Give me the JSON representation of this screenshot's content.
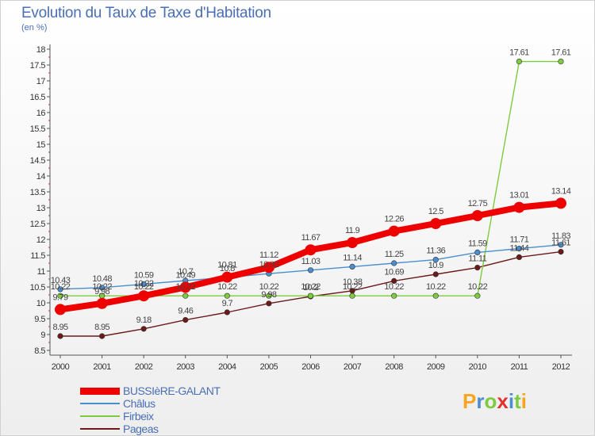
{
  "chart_data": {
    "type": "line",
    "title": "Evolution du Taux de Taxe d'Habitation",
    "subtitle": "(en %)",
    "x": [
      "2000",
      "2001",
      "2002",
      "2003",
      "2004",
      "2005",
      "2006",
      "2007",
      "2008",
      "2009",
      "2010",
      "2011",
      "2012"
    ],
    "ylim": [
      8.5,
      18
    ],
    "yticks": [
      "8.5",
      "9",
      "9.5",
      "10",
      "10.5",
      "11",
      "11.5",
      "12",
      "12.5",
      "13",
      "13.5",
      "14",
      "14.5",
      "15",
      "15.5",
      "16",
      "16.5",
      "17",
      "17.5",
      "18"
    ],
    "series": [
      {
        "name": "Pageas",
        "color": "#6b1a1a",
        "values": [
          8.95,
          8.95,
          9.18,
          9.46,
          9.7,
          9.98,
          10.2,
          10.38,
          10.69,
          10.9,
          11.11,
          11.44,
          11.61
        ],
        "labels": [
          "8.95",
          "8.95",
          "9.18",
          "9.46",
          "9.7",
          "9.98",
          "10.2",
          "10.38",
          "10.69",
          "10.9",
          "11.11",
          "11.44",
          "11.61"
        ]
      },
      {
        "name": "Firbeix",
        "color": "#7ecb3f",
        "values": [
          10.22,
          10.22,
          10.22,
          10.22,
          10.22,
          10.22,
          10.22,
          10.22,
          10.22,
          10.22,
          10.22,
          17.61,
          17.61
        ],
        "labels": [
          "10.22",
          "10.22",
          "10.22",
          "10.22",
          "10.22",
          "10.22",
          "10.22",
          "10.22",
          "10.22",
          "10.22",
          "10.22",
          "17.61",
          "17.61"
        ]
      },
      {
        "name": "Châlus",
        "color": "#4a8ed0",
        "values": [
          10.43,
          10.48,
          10.59,
          10.7,
          10.8,
          10.92,
          11.03,
          11.14,
          11.25,
          11.36,
          11.59,
          11.71,
          11.83
        ],
        "labels": [
          "10.43",
          "10.48",
          "10.59",
          "10.7",
          "10.8",
          "10.92",
          "11.03",
          "11.14",
          "11.25",
          "11.36",
          "11.59",
          "11.71",
          "11.83"
        ]
      },
      {
        "name": "BUSSIèRE-GALANT",
        "color": "#ee0000",
        "values": [
          9.79,
          9.98,
          10.22,
          10.49,
          10.81,
          11.12,
          11.67,
          11.9,
          12.26,
          12.5,
          12.75,
          13.01,
          13.14
        ],
        "labels": [
          "9.79",
          "9.98",
          "10.22",
          "10.49",
          "10.81",
          "11.12",
          "11.67",
          "11.9",
          "12.26",
          "12.5",
          "12.75",
          "13.01",
          "13.14"
        ]
      }
    ]
  },
  "legend": [
    {
      "name": "BUSSIèRE-GALANT",
      "color": "#ee0000"
    },
    {
      "name": "Châlus",
      "color": "#4a8ed0"
    },
    {
      "name": "Firbeix",
      "color": "#7ecb3f"
    },
    {
      "name": "Pageas",
      "color": "#6b1a1a"
    }
  ],
  "logo": {
    "letters": [
      "P",
      "r",
      "o",
      "x",
      "i",
      "t",
      "i"
    ],
    "colors": [
      "#f7a520",
      "#4a8ed0",
      "#7ecb3f",
      "#e0322f",
      "#4a8ed0",
      "#7ecb3f",
      "#f7a520"
    ]
  }
}
